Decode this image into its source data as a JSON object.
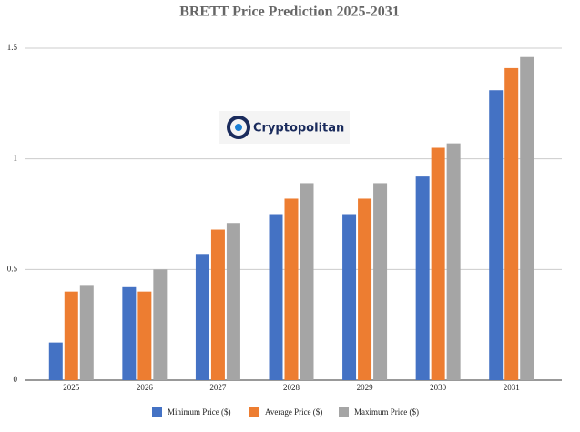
{
  "chart_data": {
    "type": "bar",
    "title": "BRETT Price Prediction 2025-2031",
    "watermark": "Cryptopolitan",
    "categories": [
      "2025",
      "2026",
      "2027",
      "2028",
      "2029",
      "2030",
      "2031"
    ],
    "series": [
      {
        "name": "Minimum Price ($)",
        "color": "#4472c4",
        "values": [
          0.17,
          0.42,
          0.57,
          0.75,
          0.75,
          0.92,
          1.31
        ]
      },
      {
        "name": "Average Price ($)",
        "color": "#ed7d31",
        "values": [
          0.4,
          0.4,
          0.68,
          0.82,
          0.82,
          1.05,
          1.41
        ]
      },
      {
        "name": "Maximum Price ($)",
        "color": "#a5a5a5",
        "values": [
          0.43,
          0.5,
          0.71,
          0.89,
          0.89,
          1.07,
          1.46
        ]
      }
    ],
    "ylim": [
      0,
      1.5
    ],
    "yticks": [
      0,
      0.5,
      1,
      1.5
    ],
    "grid": true
  }
}
